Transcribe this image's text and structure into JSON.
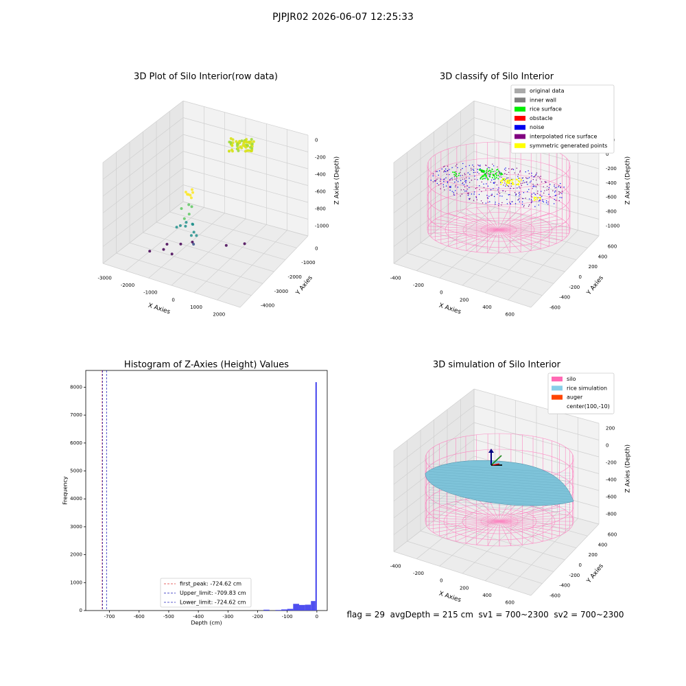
{
  "figure_title": "PJPJR02 2026-06-07 12:25:33",
  "footer_text": "flag = 29  avgDepth = 215 cm  sv1 = 700~2300  sv2 = 700~2300",
  "colors": {
    "axes_pane": "#ebebeb",
    "grid": "#cfcfcf",
    "histogram_bar": "#4444ee",
    "first_peak_line": "#dd3333",
    "limit_line": "#2222bb",
    "silo_wire": "#ff69b4",
    "rice_surface": "#7ec3d9",
    "noise": "#0000ee",
    "rice_surface_points": "#00ee00",
    "symmetric_points": "#ffff00"
  },
  "chart_data": [
    {
      "id": "raw",
      "type": "scatter",
      "title": "3D Plot of Silo Interior(row data)",
      "xlabel": "X Axies",
      "ylabel": "Y Axies",
      "zlabel": "Z Axies (Depth)",
      "x_ticks": [
        "-3000",
        "-2000",
        "-1000",
        "0",
        "1000",
        "2000"
      ],
      "y_ticks": [
        "0",
        "-1000",
        "-2000",
        "-3000",
        "-4000"
      ],
      "z_ticks": [
        "0",
        "-200",
        "-400",
        "-600",
        "-800",
        "-1000"
      ],
      "xlim": [
        -3600,
        2600
      ],
      "ylim": [
        500,
        -4500
      ],
      "zlim": [
        -1100,
        100
      ],
      "colormap": "viridis",
      "points": [
        [
          -2400,
          -800,
          -1050
        ],
        [
          -2100,
          -1500,
          -1050
        ],
        [
          -1900,
          -1000,
          -1020
        ],
        [
          -1600,
          -1700,
          -1040
        ],
        [
          -1300,
          -700,
          -980
        ],
        [
          -700,
          -1200,
          -870
        ],
        [
          200,
          -2200,
          -1000
        ],
        [
          800,
          -2600,
          -1000
        ],
        [
          -100,
          -400,
          -720
        ],
        [
          -400,
          300,
          -430
        ],
        [
          -300,
          200,
          -420
        ],
        [
          -100,
          100,
          -380
        ],
        [
          -200,
          0,
          -450
        ],
        [
          50,
          -100,
          -420
        ],
        [
          200,
          100,
          -380
        ],
        [
          -50,
          300,
          -300
        ],
        [
          150,
          -50,
          -500
        ],
        [
          0,
          -100,
          -560
        ],
        [
          300,
          0,
          -520
        ],
        [
          100,
          200,
          -250
        ],
        [
          -150,
          350,
          -180
        ],
        [
          50,
          150,
          -150
        ],
        [
          250,
          250,
          -140
        ],
        [
          100,
          50,
          -80
        ],
        [
          0,
          100,
          -40
        ],
        [
          150,
          200,
          -20
        ],
        [
          50,
          250,
          -10
        ],
        [
          200,
          100,
          0
        ],
        [
          100,
          0,
          10
        ],
        [
          -50,
          200,
          0
        ]
      ]
    },
    {
      "id": "classify",
      "type": "scatter",
      "title": "3D classify of Silo Interior",
      "xlabel": "X Axies",
      "ylabel": "Y Axies",
      "zlabel": "Z Axies (Depth)",
      "x_ticks": [
        "-400",
        "-200",
        "0",
        "200",
        "400",
        "600"
      ],
      "y_ticks": [
        "600",
        "400",
        "200",
        "0",
        "-200",
        "-400",
        "-600"
      ],
      "z_ticks": [
        "200",
        "0",
        "-200",
        "-400",
        "-600",
        "-800",
        "-1000"
      ],
      "xlim": [
        -550,
        750
      ],
      "ylim": [
        700,
        -700
      ],
      "zlim": [
        -1000,
        250
      ],
      "legend": [
        {
          "label": "original data",
          "color": "#aaaaaa"
        },
        {
          "label": "inner wall",
          "color": "#808080"
        },
        {
          "label": "rice surface",
          "color": "#00ee00"
        },
        {
          "label": "obstacle",
          "color": "#ff0000"
        },
        {
          "label": "noise",
          "color": "#0000ee"
        },
        {
          "label": "interpolated rice surface",
          "color": "#800080"
        },
        {
          "label": "symmetric generated points",
          "color": "#ffff00"
        }
      ],
      "silo": {
        "center_x": 100,
        "center_y": -10,
        "radius": 600,
        "z_top": 50,
        "z_bottom": -1000
      }
    },
    {
      "id": "histogram",
      "type": "bar",
      "title": "Histogram of Z-Axies (Height) Values",
      "xlabel": "Depth (cm)",
      "ylabel": "Frequency",
      "xlim": [
        -780,
        35
      ],
      "ylim": [
        0,
        8600
      ],
      "x_ticks": [
        -700,
        -600,
        -500,
        -400,
        -300,
        -200,
        -100,
        0
      ],
      "y_ticks": [
        0,
        1000,
        2000,
        3000,
        4000,
        5000,
        6000,
        7000,
        8000
      ],
      "bins": [
        {
          "x0": -180,
          "x1": -160,
          "count": 30
        },
        {
          "x0": -160,
          "x1": -140,
          "count": 0
        },
        {
          "x0": -140,
          "x1": -120,
          "count": 20
        },
        {
          "x0": -120,
          "x1": -100,
          "count": 40
        },
        {
          "x0": -100,
          "x1": -80,
          "count": 60
        },
        {
          "x0": -80,
          "x1": -60,
          "count": 240
        },
        {
          "x0": -60,
          "x1": -40,
          "count": 200
        },
        {
          "x0": -40,
          "x1": -20,
          "count": 210
        },
        {
          "x0": -20,
          "x1": -5,
          "count": 340
        },
        {
          "x0": -5,
          "x1": 0,
          "count": 8180
        }
      ],
      "vlines": [
        {
          "x": -724.62,
          "style": "first_peak",
          "label": "first_peak: -724.62 cm"
        },
        {
          "x": -709.83,
          "style": "limit",
          "label": "Upper_limit: -709.83 cm"
        },
        {
          "x": -724.62,
          "style": "limit",
          "label": "Lower_limit: -724.62 cm"
        }
      ]
    },
    {
      "id": "simulation",
      "type": "surface",
      "title": "3D simulation of Silo Interior",
      "xlabel": "X Axies",
      "ylabel": "Y Axies",
      "zlabel": "Z Axies (Depth)",
      "x_ticks": [
        "-400",
        "-200",
        "0",
        "200",
        "400",
        "600"
      ],
      "y_ticks": [
        "600",
        "400",
        "200",
        "0",
        "-200",
        "-400",
        "-600"
      ],
      "z_ticks": [
        "200",
        "0",
        "-200",
        "-400",
        "-600",
        "-800"
      ],
      "xlim": [
        -550,
        750
      ],
      "ylim": [
        700,
        -700
      ],
      "zlim": [
        -900,
        300
      ],
      "legend": [
        {
          "label": "silo",
          "color": "#ff69b4"
        },
        {
          "label": "rice simulation",
          "color": "#87cee8"
        },
        {
          "label": "auger",
          "color": "#ff4500"
        },
        {
          "label": "center(100,-10)",
          "color": ""
        }
      ],
      "silo": {
        "center_x": 100,
        "center_y": -10,
        "radius": 600,
        "z_top": 120,
        "z_bottom": -900
      }
    }
  ]
}
